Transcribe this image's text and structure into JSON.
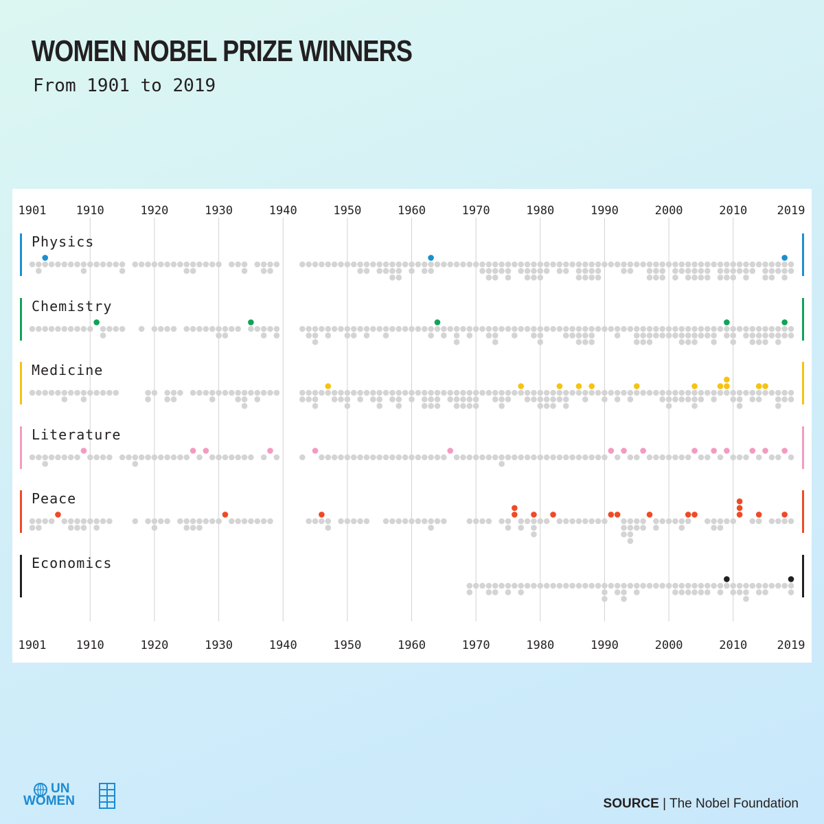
{
  "page": {
    "title": "WOMEN NOBEL PRIZE WINNERS",
    "subtitle": "From 1901 to 2019",
    "source_label": "SOURCE",
    "source_separator": " | ",
    "source_text": "The Nobel Foundation",
    "logo_top": "UN",
    "logo_bottom": "WOMEN"
  },
  "chart_data": {
    "type": "scatter",
    "title": "WOMEN NOBEL PRIZE WINNERS",
    "subtitle": "From 1901 to 2019",
    "xlim": [
      1901,
      2019
    ],
    "x_ticks": [
      "1901",
      "1910",
      "1920",
      "1930",
      "1940",
      "1950",
      "1960",
      "1970",
      "1980",
      "1990",
      "2000",
      "2010",
      "2019"
    ],
    "x_tick_values": [
      1901,
      1910,
      1920,
      1930,
      1940,
      1950,
      1960,
      1970,
      1980,
      1990,
      2000,
      2010,
      2019
    ],
    "grid": "vertical decade lines",
    "male_color": "#d4d4d4",
    "series": [
      {
        "name": "Physics",
        "color": "#1a8fd0",
        "first_year": 1901,
        "women_years": [
          1903,
          1963,
          2018
        ],
        "men_counts": [
          1,
          2,
          1,
          1,
          1,
          1,
          1,
          1,
          2,
          1,
          1,
          1,
          1,
          1,
          2,
          0,
          1,
          1,
          1,
          1,
          1,
          1,
          1,
          1,
          2,
          2,
          1,
          1,
          1,
          1,
          0,
          1,
          1,
          2,
          0,
          1,
          2,
          2,
          1,
          0,
          0,
          0,
          1,
          1,
          1,
          1,
          1,
          1,
          1,
          1,
          1,
          2,
          2,
          1,
          2,
          2,
          3,
          3,
          1,
          2,
          1,
          2,
          2,
          1,
          1,
          1,
          1,
          1,
          1,
          1,
          2,
          3,
          3,
          2,
          3,
          1,
          2,
          3,
          3,
          3,
          2,
          1,
          2,
          2,
          1,
          3,
          3,
          3,
          3,
          1,
          1,
          1,
          2,
          2,
          1,
          1,
          3,
          3,
          3,
          1,
          3,
          2,
          3,
          3,
          3,
          3,
          1,
          3,
          3,
          3,
          2,
          3,
          2,
          1,
          3,
          3,
          2,
          3,
          2
        ],
        "women_counts": [
          0,
          0,
          1,
          0,
          0,
          0,
          0,
          0,
          0,
          0,
          0,
          0,
          0,
          0,
          0,
          0,
          0,
          0,
          0,
          0,
          0,
          0,
          0,
          0,
          0,
          0,
          0,
          0,
          0,
          0,
          0,
          0,
          0,
          0,
          0,
          0,
          0,
          0,
          0,
          0,
          0,
          0,
          0,
          0,
          0,
          0,
          0,
          0,
          0,
          0,
          0,
          0,
          0,
          0,
          0,
          0,
          0,
          0,
          0,
          0,
          0,
          0,
          1,
          0,
          0,
          0,
          0,
          0,
          0,
          0,
          0,
          0,
          0,
          0,
          0,
          0,
          0,
          0,
          0,
          0,
          0,
          0,
          0,
          0,
          0,
          0,
          0,
          0,
          0,
          0,
          0,
          0,
          0,
          0,
          0,
          0,
          0,
          0,
          0,
          0,
          0,
          0,
          0,
          0,
          0,
          0,
          0,
          0,
          0,
          0,
          0,
          0,
          0,
          0,
          0,
          0,
          0,
          1,
          0
        ]
      },
      {
        "name": "Chemistry",
        "color": "#10a35a",
        "first_year": 1901,
        "women_years": [
          1911,
          1935,
          1964,
          2009,
          2018
        ],
        "men_counts": [
          1,
          1,
          1,
          1,
          1,
          1,
          1,
          1,
          1,
          1,
          0,
          2,
          1,
          1,
          1,
          0,
          0,
          1,
          0,
          1,
          1,
          1,
          1,
          0,
          1,
          1,
          1,
          1,
          1,
          2,
          2,
          1,
          1,
          0,
          1,
          1,
          2,
          1,
          2,
          0,
          0,
          0,
          1,
          2,
          3,
          1,
          2,
          1,
          1,
          2,
          2,
          1,
          2,
          1,
          1,
          2,
          1,
          1,
          1,
          1,
          1,
          1,
          2,
          1,
          2,
          1,
          3,
          1,
          2,
          1,
          1,
          2,
          3,
          1,
          1,
          2,
          1,
          1,
          2,
          3,
          1,
          1,
          1,
          2,
          2,
          3,
          3,
          3,
          1,
          1,
          1,
          2,
          1,
          1,
          3,
          3,
          3,
          2,
          2,
          2,
          2,
          3,
          3,
          3,
          2,
          2,
          3,
          1,
          2,
          3,
          1,
          2,
          3,
          3,
          3,
          2,
          3,
          2,
          2
        ],
        "women_counts": [
          0,
          0,
          0,
          0,
          0,
          0,
          0,
          0,
          0,
          0,
          1,
          0,
          0,
          0,
          0,
          0,
          0,
          0,
          0,
          0,
          0,
          0,
          0,
          0,
          0,
          0,
          0,
          0,
          0,
          0,
          0,
          0,
          0,
          0,
          1,
          0,
          0,
          0,
          0,
          0,
          0,
          0,
          0,
          0,
          0,
          0,
          0,
          0,
          0,
          0,
          0,
          0,
          0,
          0,
          0,
          0,
          0,
          0,
          0,
          0,
          0,
          0,
          0,
          1,
          0,
          0,
          0,
          0,
          0,
          0,
          0,
          0,
          0,
          0,
          0,
          0,
          0,
          0,
          0,
          0,
          0,
          0,
          0,
          0,
          0,
          0,
          0,
          0,
          0,
          0,
          0,
          0,
          0,
          0,
          0,
          0,
          0,
          0,
          0,
          0,
          0,
          0,
          0,
          0,
          0,
          0,
          0,
          0,
          1,
          0,
          0,
          0,
          0,
          0,
          0,
          0,
          0,
          1,
          0
        ]
      },
      {
        "name": "Medicine",
        "color": "#f6c312",
        "first_year": 1901,
        "women_years": [
          1947,
          1977,
          1983,
          1986,
          1988,
          1995,
          2004,
          2008,
          2009,
          2009,
          2014,
          2015
        ],
        "men_counts": [
          1,
          1,
          1,
          1,
          1,
          2,
          1,
          1,
          2,
          1,
          1,
          1,
          1,
          1,
          0,
          0,
          0,
          0,
          2,
          1,
          0,
          2,
          2,
          1,
          0,
          1,
          1,
          1,
          2,
          1,
          1,
          1,
          2,
          3,
          1,
          2,
          1,
          1,
          1,
          0,
          0,
          0,
          2,
          2,
          3,
          1,
          1,
          2,
          2,
          3,
          1,
          2,
          1,
          2,
          3,
          1,
          2,
          3,
          1,
          2,
          1,
          3,
          3,
          3,
          1,
          2,
          3,
          3,
          3,
          3,
          1,
          1,
          2,
          3,
          2,
          1,
          1,
          2,
          2,
          3,
          3,
          3,
          2,
          3,
          1,
          1,
          2,
          1,
          1,
          2,
          1,
          2,
          1,
          2,
          1,
          1,
          1,
          1,
          2,
          3,
          2,
          2,
          2,
          3,
          2,
          1,
          2,
          1,
          1,
          2,
          3,
          1,
          2,
          2,
          1,
          1,
          3,
          2,
          2
        ],
        "women_counts": [
          0,
          0,
          0,
          0,
          0,
          0,
          0,
          0,
          0,
          0,
          0,
          0,
          0,
          0,
          0,
          0,
          0,
          0,
          0,
          0,
          0,
          0,
          0,
          0,
          0,
          0,
          0,
          0,
          0,
          0,
          0,
          0,
          0,
          0,
          0,
          0,
          0,
          0,
          0,
          0,
          0,
          0,
          0,
          0,
          0,
          0,
          1,
          0,
          0,
          0,
          0,
          0,
          0,
          0,
          0,
          0,
          0,
          0,
          0,
          0,
          0,
          0,
          0,
          0,
          0,
          0,
          0,
          0,
          0,
          0,
          0,
          0,
          0,
          0,
          0,
          0,
          1,
          0,
          0,
          0,
          0,
          0,
          1,
          0,
          0,
          1,
          0,
          1,
          0,
          0,
          0,
          0,
          0,
          0,
          1,
          0,
          0,
          0,
          0,
          0,
          0,
          0,
          0,
          1,
          0,
          0,
          0,
          1,
          2,
          0,
          0,
          0,
          0,
          1,
          1,
          0,
          0,
          0,
          0
        ]
      },
      {
        "name": "Literature",
        "color": "#f49ac1",
        "first_year": 1901,
        "women_years": [
          1909,
          1926,
          1928,
          1938,
          1945,
          1966,
          1991,
          1993,
          1996,
          2004,
          2007,
          2009,
          2013,
          2015,
          2018
        ],
        "men_counts": [
          1,
          1,
          2,
          1,
          1,
          1,
          1,
          1,
          0,
          1,
          1,
          1,
          1,
          0,
          1,
          1,
          2,
          1,
          1,
          1,
          1,
          1,
          1,
          1,
          1,
          0,
          1,
          0,
          1,
          1,
          1,
          1,
          1,
          1,
          1,
          0,
          1,
          0,
          1,
          0,
          0,
          0,
          1,
          0,
          0,
          1,
          1,
          1,
          1,
          1,
          1,
          1,
          1,
          1,
          1,
          1,
          1,
          1,
          1,
          1,
          1,
          1,
          1,
          1,
          1,
          0,
          1,
          1,
          1,
          1,
          1,
          1,
          1,
          2,
          1,
          1,
          1,
          1,
          1,
          1,
          1,
          1,
          1,
          1,
          1,
          1,
          1,
          1,
          1,
          1,
          0,
          1,
          0,
          1,
          1,
          0,
          1,
          1,
          1,
          1,
          1,
          1,
          1,
          0,
          1,
          1,
          0,
          1,
          0,
          1,
          1,
          1,
          0,
          1,
          0,
          1,
          1,
          0,
          1
        ],
        "women_counts": [
          0,
          0,
          0,
          0,
          0,
          0,
          0,
          0,
          1,
          0,
          0,
          0,
          0,
          0,
          0,
          0,
          0,
          0,
          0,
          0,
          0,
          0,
          0,
          0,
          0,
          1,
          0,
          1,
          0,
          0,
          0,
          0,
          0,
          0,
          0,
          0,
          0,
          1,
          0,
          0,
          0,
          0,
          0,
          0,
          1,
          0,
          0,
          0,
          0,
          0,
          0,
          0,
          0,
          0,
          0,
          0,
          0,
          0,
          0,
          0,
          0,
          0,
          0,
          0,
          0,
          1,
          0,
          0,
          0,
          0,
          0,
          0,
          0,
          0,
          0,
          0,
          0,
          0,
          0,
          0,
          0,
          0,
          0,
          0,
          0,
          0,
          0,
          0,
          0,
          0,
          1,
          0,
          1,
          0,
          0,
          1,
          0,
          0,
          0,
          0,
          0,
          0,
          0,
          1,
          0,
          0,
          1,
          0,
          1,
          0,
          0,
          0,
          1,
          0,
          1,
          0,
          0,
          1,
          0
        ]
      },
      {
        "name": "Peace",
        "color": "#ef4a26",
        "first_year": 1901,
        "women_years": [
          1905,
          1931,
          1946,
          1976,
          1976,
          1979,
          1982,
          1991,
          1992,
          1997,
          2003,
          2004,
          2011,
          2011,
          2011,
          2014,
          2018
        ],
        "men_counts": [
          2,
          2,
          1,
          1,
          0,
          1,
          2,
          2,
          2,
          1,
          2,
          1,
          1,
          0,
          0,
          0,
          1,
          0,
          1,
          2,
          1,
          1,
          0,
          1,
          2,
          2,
          2,
          1,
          1,
          1,
          0,
          1,
          1,
          1,
          1,
          1,
          1,
          1,
          0,
          0,
          0,
          0,
          0,
          1,
          1,
          1,
          2,
          0,
          1,
          1,
          1,
          1,
          1,
          0,
          0,
          1,
          1,
          1,
          1,
          1,
          1,
          1,
          2,
          1,
          1,
          0,
          0,
          0,
          1,
          1,
          1,
          1,
          0,
          1,
          2,
          0,
          2,
          1,
          3,
          1,
          1,
          0,
          1,
          1,
          1,
          1,
          1,
          1,
          1,
          1,
          0,
          0,
          3,
          4,
          2,
          2,
          0,
          2,
          1,
          1,
          1,
          2,
          1,
          0,
          0,
          1,
          2,
          2,
          1,
          1,
          0,
          0,
          1,
          1,
          0,
          1,
          1,
          1,
          1
        ],
        "women_counts": [
          0,
          0,
          0,
          0,
          1,
          0,
          0,
          0,
          0,
          0,
          0,
          0,
          0,
          0,
          0,
          0,
          0,
          0,
          0,
          0,
          0,
          0,
          0,
          0,
          0,
          0,
          0,
          0,
          0,
          0,
          1,
          0,
          0,
          0,
          0,
          0,
          0,
          0,
          0,
          0,
          0,
          0,
          0,
          0,
          0,
          1,
          0,
          0,
          0,
          0,
          0,
          0,
          0,
          0,
          0,
          0,
          0,
          0,
          0,
          0,
          0,
          0,
          0,
          0,
          0,
          0,
          0,
          0,
          0,
          0,
          0,
          0,
          0,
          0,
          0,
          2,
          0,
          0,
          1,
          0,
          0,
          1,
          0,
          0,
          0,
          0,
          0,
          0,
          0,
          0,
          1,
          1,
          0,
          0,
          0,
          0,
          1,
          0,
          0,
          0,
          0,
          0,
          1,
          1,
          0,
          0,
          0,
          0,
          0,
          0,
          3,
          0,
          0,
          1,
          0,
          0,
          0,
          1,
          0
        ]
      },
      {
        "name": "Economics",
        "color": "#231f20",
        "first_year": 1969,
        "women_years": [
          2009,
          2019
        ],
        "men_counts": [
          2,
          1,
          1,
          2,
          2,
          1,
          2,
          1,
          2,
          1,
          1,
          1,
          1,
          1,
          1,
          1,
          1,
          1,
          1,
          1,
          1,
          3,
          1,
          2,
          3,
          1,
          2,
          1,
          1,
          1,
          1,
          1,
          2,
          2,
          2,
          2,
          2,
          2,
          1,
          2,
          1,
          2,
          2,
          3,
          1,
          2,
          2,
          1,
          1,
          1,
          2
        ],
        "women_counts": [
          0,
          0,
          0,
          0,
          0,
          0,
          0,
          0,
          0,
          0,
          0,
          0,
          0,
          0,
          0,
          0,
          0,
          0,
          0,
          0,
          0,
          0,
          0,
          0,
          0,
          0,
          0,
          0,
          0,
          0,
          0,
          0,
          0,
          0,
          0,
          0,
          0,
          0,
          0,
          0,
          1,
          0,
          0,
          0,
          0,
          0,
          0,
          0,
          0,
          0,
          1
        ]
      }
    ]
  }
}
